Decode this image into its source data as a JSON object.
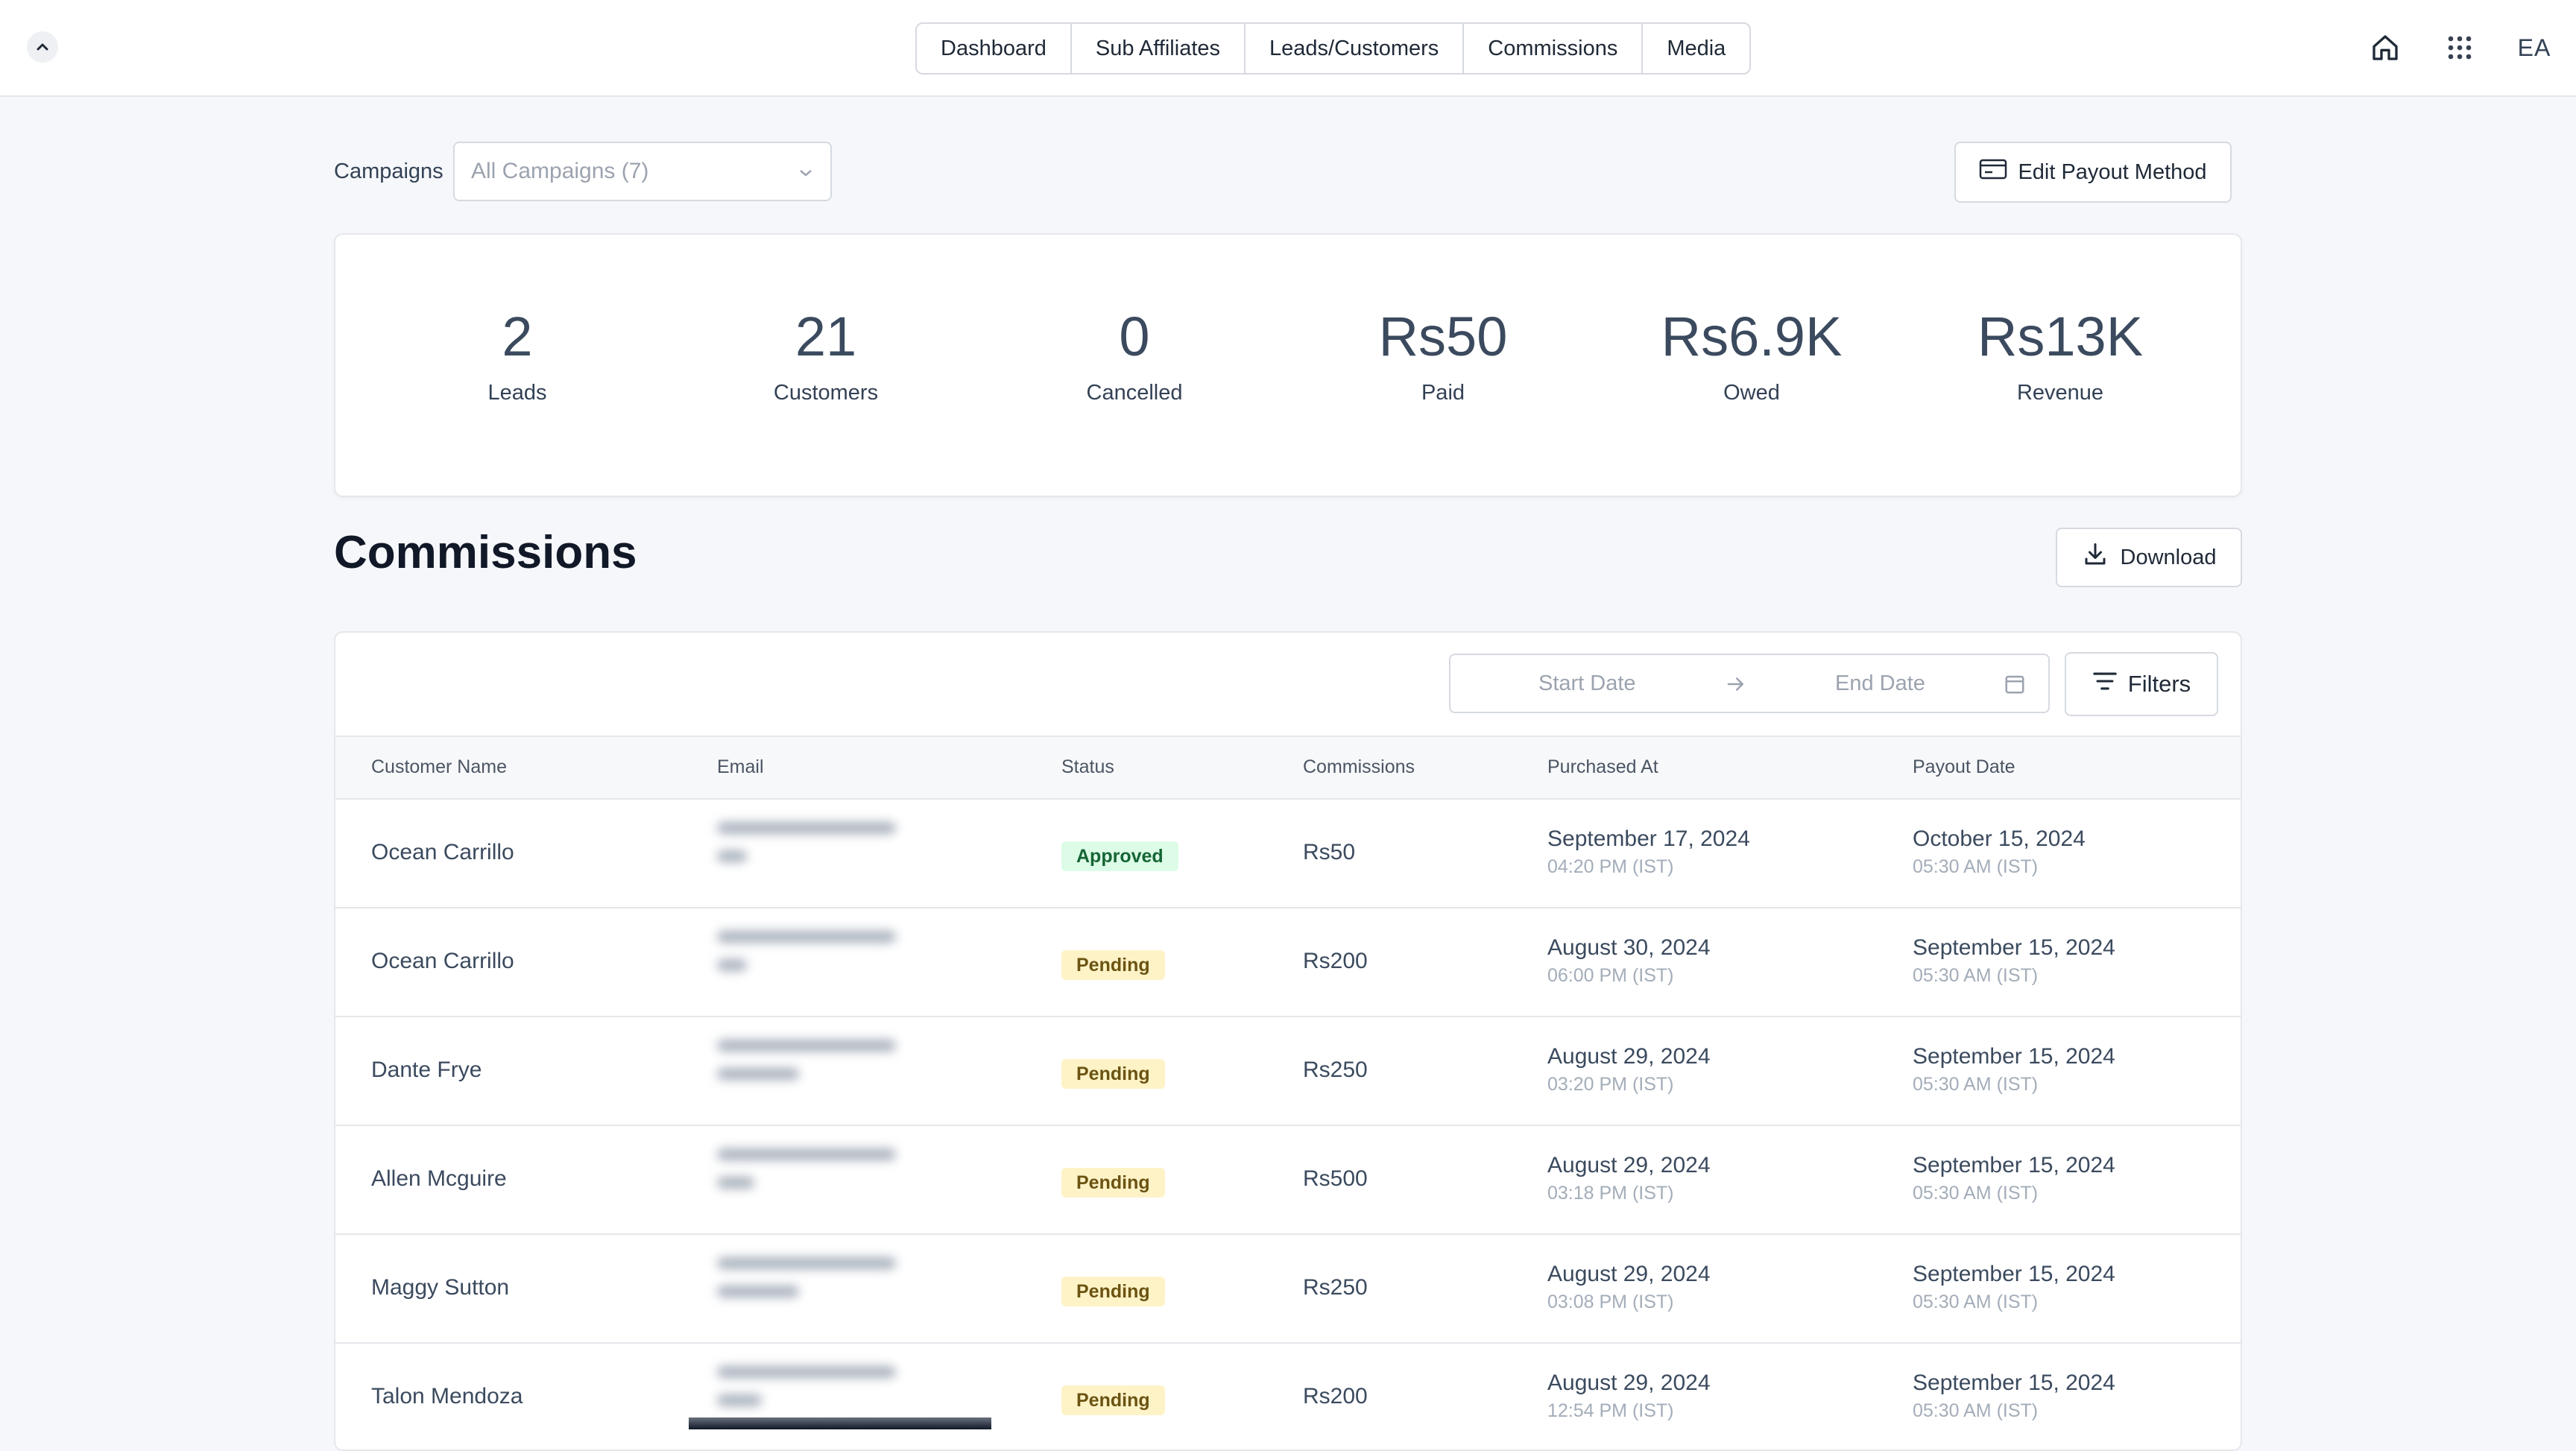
{
  "nav": {
    "items": [
      "Dashboard",
      "Sub Affiliates",
      "Leads/Customers",
      "Commissions",
      "Media"
    ]
  },
  "user": {
    "initials": "EA"
  },
  "filters": {
    "campaigns_label": "Campaigns",
    "campaigns_value": "All Campaigns (7)"
  },
  "edit_payout_label": "Edit Payout Method",
  "stats": [
    {
      "value": "2",
      "label": "Leads"
    },
    {
      "value": "21",
      "label": "Customers"
    },
    {
      "value": "0",
      "label": "Cancelled"
    },
    {
      "value": "Rs50",
      "label": "Paid"
    },
    {
      "value": "Rs6.9K",
      "label": "Owed"
    },
    {
      "value": "Rs13K",
      "label": "Revenue"
    }
  ],
  "section_title": "Commissions",
  "download_label": "Download",
  "date_range": {
    "start_placeholder": "Start Date",
    "end_placeholder": "End Date"
  },
  "filters_label": "Filters",
  "table": {
    "headers": [
      "Customer Name",
      "Email",
      "Status",
      "Commissions",
      "Purchased At",
      "Payout Date"
    ],
    "rows": [
      {
        "name": "Ocean Carrillo",
        "status": "Approved",
        "commission": "Rs50",
        "purchased_date": "September 17, 2024",
        "purchased_time": "04:20 PM (IST)",
        "payout_date": "October 15, 2024",
        "payout_time": "05:30 AM (IST)"
      },
      {
        "name": "Ocean Carrillo",
        "status": "Pending",
        "commission": "Rs200",
        "purchased_date": "August 30, 2024",
        "purchased_time": "06:00 PM (IST)",
        "payout_date": "September 15, 2024",
        "payout_time": "05:30 AM (IST)"
      },
      {
        "name": "Dante Frye",
        "status": "Pending",
        "commission": "Rs250",
        "purchased_date": "August 29, 2024",
        "purchased_time": "03:20 PM (IST)",
        "payout_date": "September 15, 2024",
        "payout_time": "05:30 AM (IST)"
      },
      {
        "name": "Allen Mcguire",
        "status": "Pending",
        "commission": "Rs500",
        "purchased_date": "August 29, 2024",
        "purchased_time": "03:18 PM (IST)",
        "payout_date": "September 15, 2024",
        "payout_time": "05:30 AM (IST)"
      },
      {
        "name": "Maggy Sutton",
        "status": "Pending",
        "commission": "Rs250",
        "purchased_date": "August 29, 2024",
        "purchased_time": "03:08 PM (IST)",
        "payout_date": "September 15, 2024",
        "payout_time": "05:30 AM (IST)"
      },
      {
        "name": "Talon Mendoza",
        "status": "Pending",
        "commission": "Rs200",
        "purchased_date": "August 29, 2024",
        "purchased_time": "12:54 PM (IST)",
        "payout_date": "September 15, 2024",
        "payout_time": "05:30 AM (IST)"
      }
    ]
  }
}
